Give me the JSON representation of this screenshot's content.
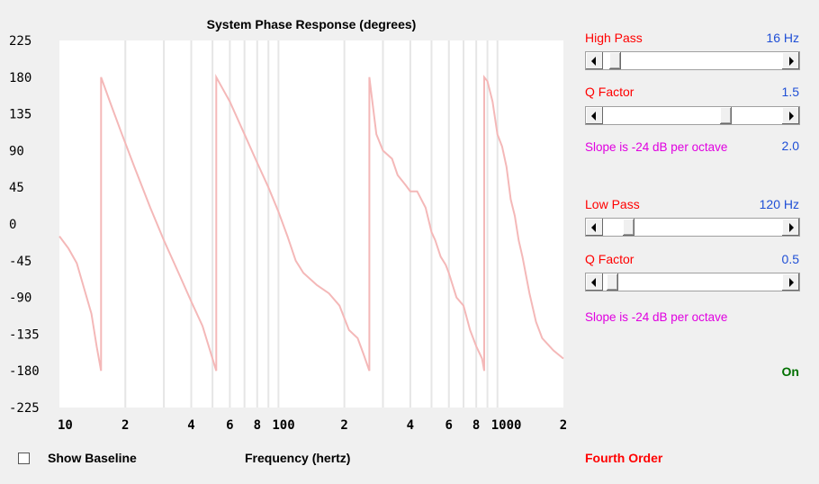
{
  "chart_data": {
    "type": "line",
    "title": "System Phase Response (degrees)",
    "xlabel": "Frequency (hertz)",
    "ylabel": "",
    "x_scale": "log",
    "xlim": [
      10,
      2000
    ],
    "ylim": [
      -225,
      225
    ],
    "y_ticks": [
      "225",
      "180",
      "135",
      "90",
      "45",
      "0",
      "-45",
      "-90",
      "-135",
      "-180",
      "-225"
    ],
    "x_tick_labels": [
      {
        "x": 10,
        "label": "10"
      },
      {
        "x": 20,
        "label": "2"
      },
      {
        "x": 40,
        "label": "4"
      },
      {
        "x": 60,
        "label": "6"
      },
      {
        "x": 80,
        "label": "8"
      },
      {
        "x": 100,
        "label": "100"
      },
      {
        "x": 200,
        "label": "2"
      },
      {
        "x": 400,
        "label": "4"
      },
      {
        "x": 600,
        "label": "6"
      },
      {
        "x": 800,
        "label": "8"
      },
      {
        "x": 1000,
        "label": "1000"
      },
      {
        "x": 2000,
        "label": "2"
      }
    ],
    "grid": true,
    "series": [
      {
        "color": "#f4b8b8",
        "points": [
          [
            10,
            -15
          ],
          [
            11,
            -30
          ],
          [
            12,
            -48
          ],
          [
            13,
            -80
          ],
          [
            14,
            -110
          ],
          [
            14.8,
            -150
          ],
          [
            15.5,
            -180
          ],
          [
            15.5,
            180
          ],
          [
            17,
            150
          ],
          [
            19,
            115
          ],
          [
            22,
            70
          ],
          [
            26,
            20
          ],
          [
            30,
            -20
          ],
          [
            35,
            -60
          ],
          [
            40,
            -95
          ],
          [
            45,
            -125
          ],
          [
            50,
            -165
          ],
          [
            52,
            -180
          ],
          [
            52,
            180
          ],
          [
            60,
            150
          ],
          [
            70,
            110
          ],
          [
            80,
            75
          ],
          [
            90,
            45
          ],
          [
            100,
            15
          ],
          [
            110,
            -15
          ],
          [
            120,
            -45
          ],
          [
            130,
            -60
          ],
          [
            150,
            -75
          ],
          [
            170,
            -85
          ],
          [
            190,
            -100
          ],
          [
            210,
            -130
          ],
          [
            230,
            -140
          ],
          [
            245,
            -160
          ],
          [
            260,
            -180
          ],
          [
            260,
            180
          ],
          [
            280,
            110
          ],
          [
            300,
            90
          ],
          [
            330,
            80
          ],
          [
            350,
            60
          ],
          [
            380,
            48
          ],
          [
            400,
            40
          ],
          [
            430,
            40
          ],
          [
            470,
            20
          ],
          [
            500,
            -10
          ],
          [
            520,
            -20
          ],
          [
            550,
            -40
          ],
          [
            580,
            -50
          ],
          [
            600,
            -60
          ],
          [
            650,
            -90
          ],
          [
            700,
            -100
          ],
          [
            750,
            -130
          ],
          [
            800,
            -150
          ],
          [
            850,
            -165
          ],
          [
            870,
            -180
          ],
          [
            870,
            180
          ],
          [
            900,
            175
          ],
          [
            950,
            150
          ],
          [
            1000,
            110
          ],
          [
            1050,
            95
          ],
          [
            1100,
            70
          ],
          [
            1150,
            30
          ],
          [
            1200,
            10
          ],
          [
            1250,
            -20
          ],
          [
            1300,
            -40
          ],
          [
            1400,
            -85
          ],
          [
            1500,
            -120
          ],
          [
            1600,
            -140
          ],
          [
            1800,
            -155
          ],
          [
            2000,
            -165
          ]
        ]
      }
    ]
  },
  "controls": {
    "high_pass": {
      "label": "High Pass",
      "value": "16 Hz",
      "position": 0.04
    },
    "high_q": {
      "label": "Q Factor",
      "value": "1.5",
      "position": 0.7
    },
    "high_slope": {
      "text": "Slope is -24 dB per octave",
      "value": "2.0"
    },
    "low_pass": {
      "label": "Low Pass",
      "value": "120 Hz",
      "position": 0.12
    },
    "low_q": {
      "label": "Q Factor",
      "value": "0.5",
      "position": 0.02
    },
    "low_slope": {
      "text": "Slope is -24 dB per octave"
    },
    "status": "On",
    "order": "Fourth Order"
  },
  "baseline": {
    "label": "Show Baseline",
    "checked": false
  },
  "icons": {
    "left_arrow": "left-arrow-icon",
    "right_arrow": "right-arrow-icon"
  }
}
